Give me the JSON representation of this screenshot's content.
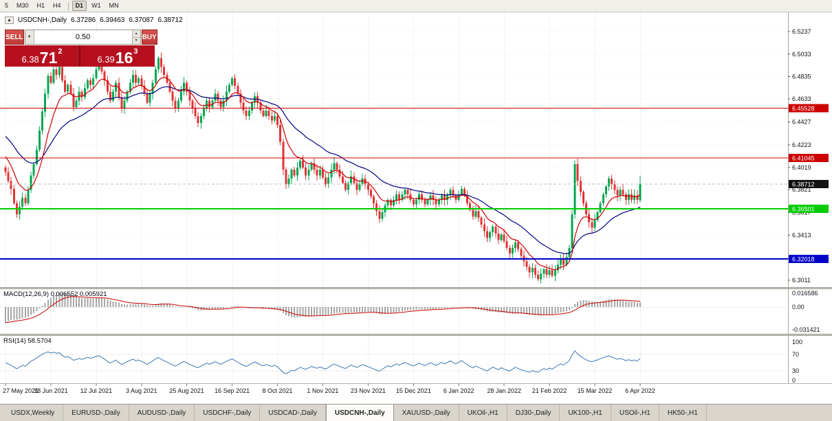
{
  "toolbar": {
    "timeframes": [
      "5",
      "M30",
      "H1",
      "H4",
      "D1",
      "W1",
      "MN"
    ],
    "active": "D1"
  },
  "chart_header": {
    "collapse_icon": "▲",
    "symbol": "USDCNH-,Daily",
    "open": "6.37286",
    "high": "6.39463",
    "low": "6.37087",
    "close": "6.38712"
  },
  "trade_widget": {
    "sell_label": "SELL",
    "buy_label": "BUY",
    "volume": "0.50",
    "bid": {
      "big": "6.38",
      "pips": "71",
      "sup": "2"
    },
    "ask": {
      "big": "6.39",
      "pips": "16",
      "sup": "3"
    }
  },
  "tabbar": {
    "tabs": [
      "USDX,Weekly",
      "EURUSD-,Daily",
      "AUDUSD-,Daily",
      "USDCHF-,Daily",
      "USDCAD-,Daily",
      "USDCNH-,Daily",
      "XAUUSD-,Daily",
      "UKOil-,H1",
      "DJ30-,Daily",
      "UK100-,H1",
      "USOil-,H1",
      "HK50-,H1"
    ],
    "active_index": 5
  },
  "chart_data": {
    "type": "candlestick",
    "symbol": "USDCNH",
    "timeframe": "Daily",
    "up_color": "#00a651",
    "down_color": "#e03434",
    "price_axis_ticks": [
      6.5237,
      6.5033,
      6.4835,
      6.4633,
      6.4427,
      6.4223,
      6.4019,
      6.3821,
      6.3617,
      6.3413,
      6.3209,
      6.3011
    ],
    "levels": [
      {
        "price": 6.45528,
        "label": "6.45528",
        "color": "#cc0000",
        "width": 1
      },
      {
        "price": 6.41045,
        "label": "6.41045",
        "color": "#cc0000",
        "width": 1
      },
      {
        "price": 6.36501,
        "label": "6.36501",
        "color": "#00cc00",
        "width": 2
      },
      {
        "price": 6.32018,
        "label": "6.32018",
        "color": "#0000c8",
        "width": 2
      }
    ],
    "current_price": {
      "value": 6.38712,
      "label": "6.38712"
    },
    "date_labels": [
      "27 May 2021",
      "18 Jun 2021",
      "12 Jul 2021",
      "3 Aug 2021",
      "25 Aug 2021",
      "16 Sep 2021",
      "8 Oct 2021",
      "1 Nov 2021",
      "23 Nov 2021",
      "15 Dec 2021",
      "6 Jan 2022",
      "28 Jan 2022",
      "21 Feb 2022",
      "15 Mar 2022",
      "6 Apr 2022"
    ],
    "bars_per_label": 16,
    "closes": [
      6.398,
      6.39,
      6.383,
      6.37,
      6.36,
      6.367,
      6.375,
      6.37,
      6.382,
      6.395,
      6.405,
      6.418,
      6.435,
      6.452,
      6.468,
      6.484,
      6.478,
      6.49,
      6.485,
      6.492,
      6.48,
      6.47,
      6.476,
      6.468,
      6.456,
      6.462,
      6.47,
      6.465,
      6.473,
      6.48,
      6.476,
      6.482,
      6.49,
      6.496,
      6.488,
      6.48,
      6.47,
      6.462,
      6.47,
      6.478,
      6.465,
      6.455,
      6.462,
      6.47,
      6.478,
      6.485,
      6.478,
      6.482,
      6.475,
      6.468,
      6.46,
      6.468,
      6.478,
      6.49,
      6.5,
      6.492,
      6.485,
      6.478,
      6.47,
      6.462,
      6.455,
      6.462,
      6.47,
      6.478,
      6.47,
      6.462,
      6.455,
      6.448,
      6.442,
      6.448,
      6.455,
      6.462,
      6.456,
      6.462,
      6.468,
      6.462,
      6.456,
      6.462,
      6.47,
      6.476,
      6.482,
      6.475,
      6.468,
      6.46,
      6.453,
      6.448,
      6.453,
      6.46,
      6.466,
      6.46,
      6.453,
      6.448,
      6.453,
      6.448,
      6.444,
      6.448,
      6.44,
      6.425,
      6.4,
      6.387,
      6.392,
      6.4,
      6.395,
      6.402,
      6.408,
      6.402,
      6.395,
      6.4,
      6.406,
      6.4,
      6.395,
      6.4,
      6.393,
      6.387,
      6.393,
      6.4,
      6.406,
      6.4,
      6.394,
      6.388,
      6.382,
      6.388,
      6.394,
      6.388,
      6.382,
      6.387,
      6.392,
      6.387,
      6.382,
      6.376,
      6.37,
      6.363,
      6.356,
      6.362,
      6.368,
      6.373,
      6.368,
      6.373,
      6.378,
      6.373,
      6.378,
      6.382,
      6.378,
      6.373,
      6.369,
      6.373,
      6.378,
      6.373,
      6.369,
      6.373,
      6.377,
      6.373,
      6.369,
      6.373,
      6.377,
      6.373,
      6.377,
      6.382,
      6.377,
      6.373,
      6.378,
      6.383,
      6.377,
      6.37,
      6.364,
      6.358,
      6.363,
      6.357,
      6.351,
      6.345,
      6.339,
      6.344,
      6.349,
      6.343,
      6.337,
      6.342,
      6.336,
      6.33,
      6.325,
      6.33,
      6.335,
      6.329,
      6.323,
      6.318,
      6.313,
      6.308,
      6.312,
      6.306,
      6.302,
      6.307,
      6.311,
      6.306,
      6.31,
      6.305,
      6.31,
      6.315,
      6.32,
      6.315,
      6.322,
      6.33,
      6.36,
      6.405,
      6.39,
      6.38,
      6.37,
      6.36,
      6.353,
      6.348,
      6.355,
      6.362,
      6.37,
      6.378,
      6.385,
      6.392,
      6.387,
      6.382,
      6.377,
      6.382,
      6.378,
      6.373,
      6.378,
      6.373,
      6.377,
      6.3729,
      6.3871
    ],
    "ma_fast": {
      "color": "#cc0000",
      "period": 10,
      "seed": 6.415
    },
    "ma_slow": {
      "color": "#000080",
      "period": 30,
      "seed": 6.432
    },
    "macd": {
      "label": "MACD(12,26,9)",
      "value_main": "0.006552",
      "value_signal": "0.005921",
      "fast": 12,
      "slow": 26,
      "signal": 9,
      "seed_fast": 6.378,
      "seed_slow": 6.408,
      "axis_max": "0.016586",
      "axis_zero": "0.00",
      "axis_min": "-0.031421",
      "hist_color": "#a6a6a6",
      "signal_color": "#cc0000"
    },
    "rsi": {
      "label": "RSI(14)",
      "value": "58.5704",
      "period": 14,
      "axis": [
        "100",
        "70",
        "30",
        "0"
      ],
      "levels": [
        70,
        30
      ],
      "line_color": "#3c78b4"
    }
  }
}
